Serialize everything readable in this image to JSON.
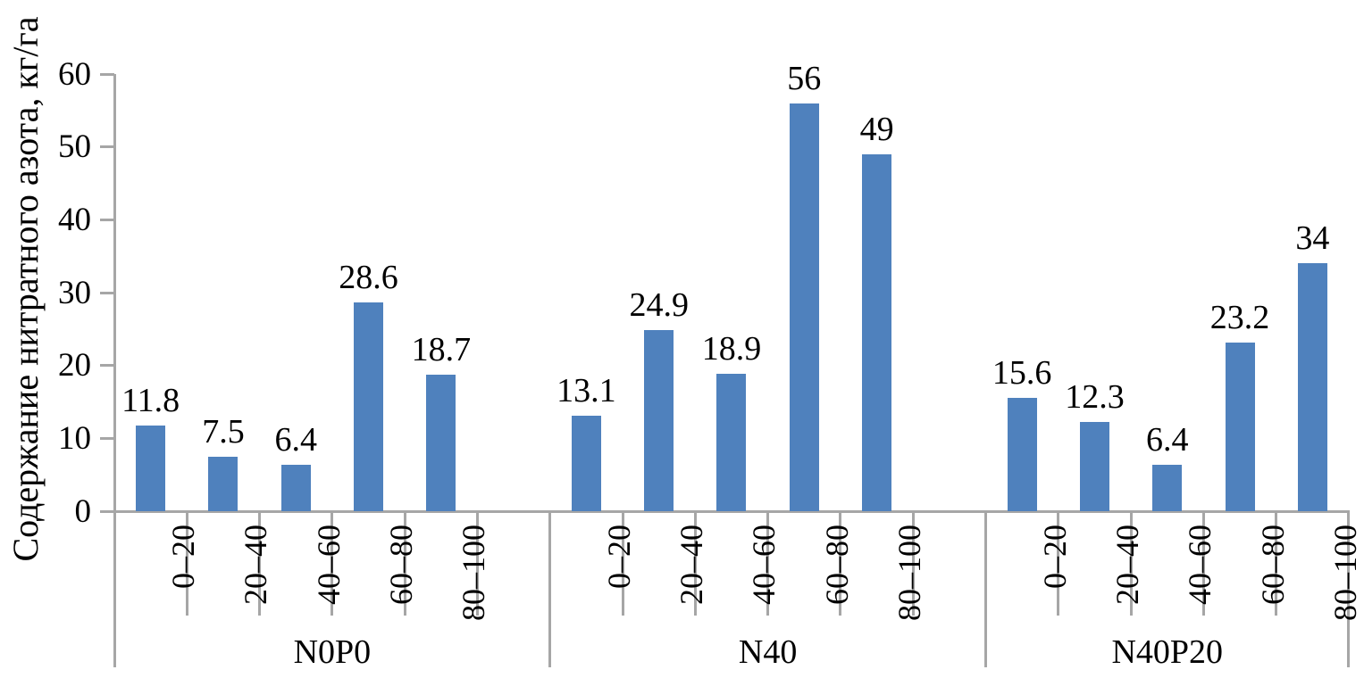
{
  "chart_data": {
    "type": "bar",
    "title": "",
    "ylabel": "Содержание нитратного азота, кг/га",
    "xlabel": "",
    "ylim": [
      0,
      60
    ],
    "yticks": [
      0,
      10,
      20,
      30,
      40,
      50,
      60
    ],
    "grid": false,
    "legend": null,
    "bar_color": "#4F81BD",
    "axis_color": "#A6A6A6",
    "text_color": "#000000",
    "groups": [
      {
        "label": "N0P0",
        "categories": [
          "0–20",
          "20–40",
          "40–60",
          "60–80",
          "80–100"
        ],
        "values": [
          11.8,
          7.5,
          6.4,
          28.6,
          18.7
        ],
        "value_labels": [
          "11.8",
          "7.5",
          "6.4",
          "28.6",
          "18.7"
        ]
      },
      {
        "label": "N40",
        "categories": [
          "0–20",
          "20–40",
          "40–60",
          "60–80",
          "80–100"
        ],
        "values": [
          13.1,
          24.9,
          18.9,
          56,
          49
        ],
        "value_labels": [
          "13.1",
          "24.9",
          "18.9",
          "56",
          "49"
        ]
      },
      {
        "label": "N40P20",
        "categories": [
          "0–20",
          "20–40",
          "40–60",
          "60–80",
          "80–100"
        ],
        "values": [
          15.6,
          12.3,
          6.4,
          23.2,
          34
        ],
        "value_labels": [
          "15.6",
          "12.3",
          "6.4",
          "23.2",
          "34"
        ]
      }
    ]
  }
}
